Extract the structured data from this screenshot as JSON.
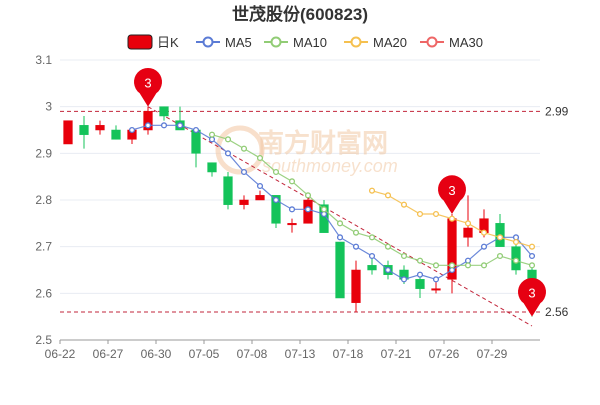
{
  "chart_data": {
    "type": "candlestick",
    "title": "世茂股份(600823)",
    "legend": [
      {
        "label": "日K",
        "color": "#e8000b",
        "kind": "candle"
      },
      {
        "label": "MA5",
        "color": "#5b7bd5",
        "kind": "line"
      },
      {
        "label": "MA10",
        "color": "#91cc75",
        "kind": "line"
      },
      {
        "label": "MA20",
        "color": "#f5c04f",
        "kind": "line"
      },
      {
        "label": "MA30",
        "color": "#ee6666",
        "kind": "line"
      }
    ],
    "legend_position": "top-center",
    "ylim": [
      2.5,
      3.1
    ],
    "yticks": [
      "2.5",
      "2.6",
      "2.7",
      "2.8",
      "2.9",
      "3",
      "3.1"
    ],
    "xtick_labels": [
      {
        "label": "06-22",
        "index": 0
      },
      {
        "label": "06-27",
        "index": 3
      },
      {
        "label": "06-30",
        "index": 6
      },
      {
        "label": "07-05",
        "index": 9
      },
      {
        "label": "07-08",
        "index": 12
      },
      {
        "label": "07-13",
        "index": 15
      },
      {
        "label": "07-18",
        "index": 18
      },
      {
        "label": "07-21",
        "index": 21
      },
      {
        "label": "07-26",
        "index": 24
      },
      {
        "label": "07-29",
        "index": 27
      }
    ],
    "candles": [
      {
        "open": 2.92,
        "close": 2.97,
        "high": 2.97,
        "low": 2.92
      },
      {
        "open": 2.96,
        "close": 2.94,
        "high": 2.98,
        "low": 2.91
      },
      {
        "open": 2.95,
        "close": 2.96,
        "high": 2.97,
        "low": 2.94
      },
      {
        "open": 2.95,
        "close": 2.93,
        "high": 2.96,
        "low": 2.93
      },
      {
        "open": 2.93,
        "close": 2.95,
        "high": 2.95,
        "low": 2.92
      },
      {
        "open": 2.95,
        "close": 2.99,
        "high": 3.0,
        "low": 2.94
      },
      {
        "open": 3.0,
        "close": 2.98,
        "high": 3.0,
        "low": 2.97
      },
      {
        "open": 2.97,
        "close": 2.95,
        "high": 3.0,
        "low": 2.95
      },
      {
        "open": 2.95,
        "close": 2.9,
        "high": 2.95,
        "low": 2.87
      },
      {
        "open": 2.88,
        "close": 2.86,
        "high": 2.88,
        "low": 2.85
      },
      {
        "open": 2.85,
        "close": 2.79,
        "high": 2.86,
        "low": 2.78
      },
      {
        "open": 2.79,
        "close": 2.8,
        "high": 2.81,
        "low": 2.78
      },
      {
        "open": 2.8,
        "close": 2.81,
        "high": 2.82,
        "low": 2.8
      },
      {
        "open": 2.81,
        "close": 2.75,
        "high": 2.81,
        "low": 2.74
      },
      {
        "open": 2.75,
        "close": 2.75,
        "high": 2.76,
        "low": 2.73
      },
      {
        "open": 2.75,
        "close": 2.8,
        "high": 2.81,
        "low": 2.75
      },
      {
        "open": 2.79,
        "close": 2.73,
        "high": 2.8,
        "low": 2.73
      },
      {
        "open": 2.71,
        "close": 2.59,
        "high": 2.71,
        "low": 2.59
      },
      {
        "open": 2.58,
        "close": 2.65,
        "high": 2.67,
        "low": 2.56
      },
      {
        "open": 2.66,
        "close": 2.65,
        "high": 2.68,
        "low": 2.64
      },
      {
        "open": 2.66,
        "close": 2.64,
        "high": 2.67,
        "low": 2.63
      },
      {
        "open": 2.65,
        "close": 2.63,
        "high": 2.66,
        "low": 2.62
      },
      {
        "open": 2.63,
        "close": 2.61,
        "high": 2.64,
        "low": 2.59
      },
      {
        "open": 2.61,
        "close": 2.61,
        "high": 2.63,
        "low": 2.6
      },
      {
        "open": 2.63,
        "close": 2.76,
        "high": 2.77,
        "low": 2.6
      },
      {
        "open": 2.72,
        "close": 2.74,
        "high": 2.81,
        "low": 2.7
      },
      {
        "open": 2.73,
        "close": 2.76,
        "high": 2.78,
        "low": 2.72
      },
      {
        "open": 2.75,
        "close": 2.7,
        "high": 2.77,
        "low": 2.7
      },
      {
        "open": 2.7,
        "close": 2.65,
        "high": 2.71,
        "low": 2.64
      },
      {
        "open": 2.65,
        "close": 2.61,
        "high": 2.66,
        "low": 2.55
      }
    ],
    "ma5": [
      null,
      null,
      null,
      null,
      2.95,
      2.96,
      2.96,
      2.96,
      2.95,
      2.93,
      2.9,
      2.86,
      2.83,
      2.8,
      2.78,
      2.78,
      2.77,
      2.72,
      2.7,
      2.68,
      2.65,
      2.63,
      2.64,
      2.63,
      2.65,
      2.67,
      2.7,
      2.72,
      2.72,
      2.68
    ],
    "ma10": [
      null,
      null,
      null,
      null,
      null,
      null,
      null,
      null,
      null,
      2.94,
      2.93,
      2.91,
      2.89,
      2.86,
      2.84,
      2.81,
      2.78,
      2.75,
      2.73,
      2.72,
      2.7,
      2.68,
      2.67,
      2.66,
      2.66,
      2.66,
      2.66,
      2.68,
      2.67,
      2.66
    ],
    "ma20": [
      null,
      null,
      null,
      null,
      null,
      null,
      null,
      null,
      null,
      null,
      null,
      null,
      null,
      null,
      null,
      null,
      null,
      null,
      null,
      2.82,
      2.81,
      2.79,
      2.77,
      2.77,
      2.76,
      2.75,
      2.73,
      2.72,
      2.71,
      2.7
    ],
    "ma30": [],
    "reference_lines": [
      {
        "value": 2.99,
        "label": "2.99"
      },
      {
        "value": 2.56,
        "label": "2.56"
      }
    ],
    "markers": [
      {
        "index": 5,
        "value": 3.0,
        "label": "3"
      },
      {
        "index": 24,
        "value": 2.77,
        "label": "3"
      },
      {
        "index": 29,
        "value": 2.55,
        "label": "3"
      }
    ],
    "trend_line": {
      "from": {
        "index": 5,
        "value": 3.0
      },
      "to": {
        "index": 29,
        "value": 2.53
      }
    },
    "watermark": "南方财富网 southmoney.com",
    "grid": true,
    "colors": {
      "up": "#e8000b",
      "down": "#14c35a",
      "grid": "#e8ecf3",
      "ref": "#c2263b",
      "axis": "#666666"
    }
  }
}
